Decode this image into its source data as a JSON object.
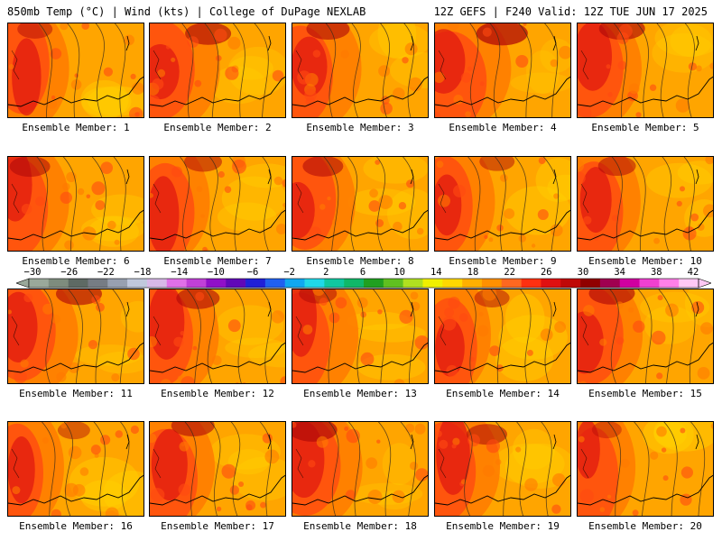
{
  "header": {
    "left": "850mb Temp (°C) | Wind (kts) | College of DuPage NEXLAB",
    "right": "12Z GEFS | F240 Valid: 12Z TUE JUN 17 2025"
  },
  "panel_label_prefix": "Ensemble Member:",
  "members": [
    {
      "label": "Ensemble Member: 1",
      "warm": 0.25
    },
    {
      "label": "Ensemble Member: 2",
      "warm": 0.45
    },
    {
      "label": "Ensemble Member: 3",
      "warm": 0.4
    },
    {
      "label": "Ensemble Member: 4",
      "warm": 0.55
    },
    {
      "label": "Ensemble Member: 5",
      "warm": 0.45
    },
    {
      "label": "Ensemble Member: 6",
      "warm": 0.35
    },
    {
      "label": "Ensemble Member: 7",
      "warm": 0.3
    },
    {
      "label": "Ensemble Member: 8",
      "warm": 0.35
    },
    {
      "label": "Ensemble Member: 9",
      "warm": 0.25
    },
    {
      "label": "Ensemble Member: 10",
      "warm": 0.3
    },
    {
      "label": "Ensemble Member: 11",
      "warm": 0.45
    },
    {
      "label": "Ensemble Member: 12",
      "warm": 0.4
    },
    {
      "label": "Ensemble Member: 13",
      "warm": 0.3
    },
    {
      "label": "Ensemble Member: 14",
      "warm": 0.25
    },
    {
      "label": "Ensemble Member: 15",
      "warm": 0.45
    },
    {
      "label": "Ensemble Member: 16",
      "warm": 0.2
    },
    {
      "label": "Ensemble Member: 17",
      "warm": 0.4
    },
    {
      "label": "Ensemble Member: 18",
      "warm": 0.5
    },
    {
      "label": "Ensemble Member: 19",
      "warm": 0.35
    },
    {
      "label": "Ensemble Member: 20",
      "warm": 0.15
    }
  ],
  "colorbar": {
    "tick_labels": [
      "-30",
      "-26",
      "-22",
      "-18",
      "-14",
      "-10",
      "-6",
      "-2",
      "2",
      "6",
      "10",
      "14",
      "18",
      "22",
      "26",
      "30",
      "34",
      "38",
      "42"
    ],
    "colors": [
      "#9aa89a",
      "#7e8c7e",
      "#5e6a64",
      "#767c84",
      "#98a0b0",
      "#c0c8dc",
      "#d8b8e8",
      "#e070e8",
      "#c040d8",
      "#9010c8",
      "#6008b8",
      "#2020d8",
      "#2060f0",
      "#10a8f0",
      "#20d8e8",
      "#10c8a0",
      "#10b868",
      "#20a020",
      "#60c020",
      "#b0e020",
      "#f0f000",
      "#ffd800",
      "#ffb000",
      "#ff9000",
      "#ff6820",
      "#ff3010",
      "#e01010",
      "#c00808",
      "#900000",
      "#a00050",
      "#d000a0",
      "#f040d0",
      "#ff80e8",
      "#ffc8f4"
    ]
  },
  "palette": {
    "yellow": "#ffd000",
    "orange": "#ffa500",
    "dark_orange": "#ff7a00",
    "red_orange": "#ff4a10",
    "red": "#e01a10",
    "dark_red": "#b00a08",
    "coast": "#000000",
    "contour": "#3a2a1a"
  }
}
